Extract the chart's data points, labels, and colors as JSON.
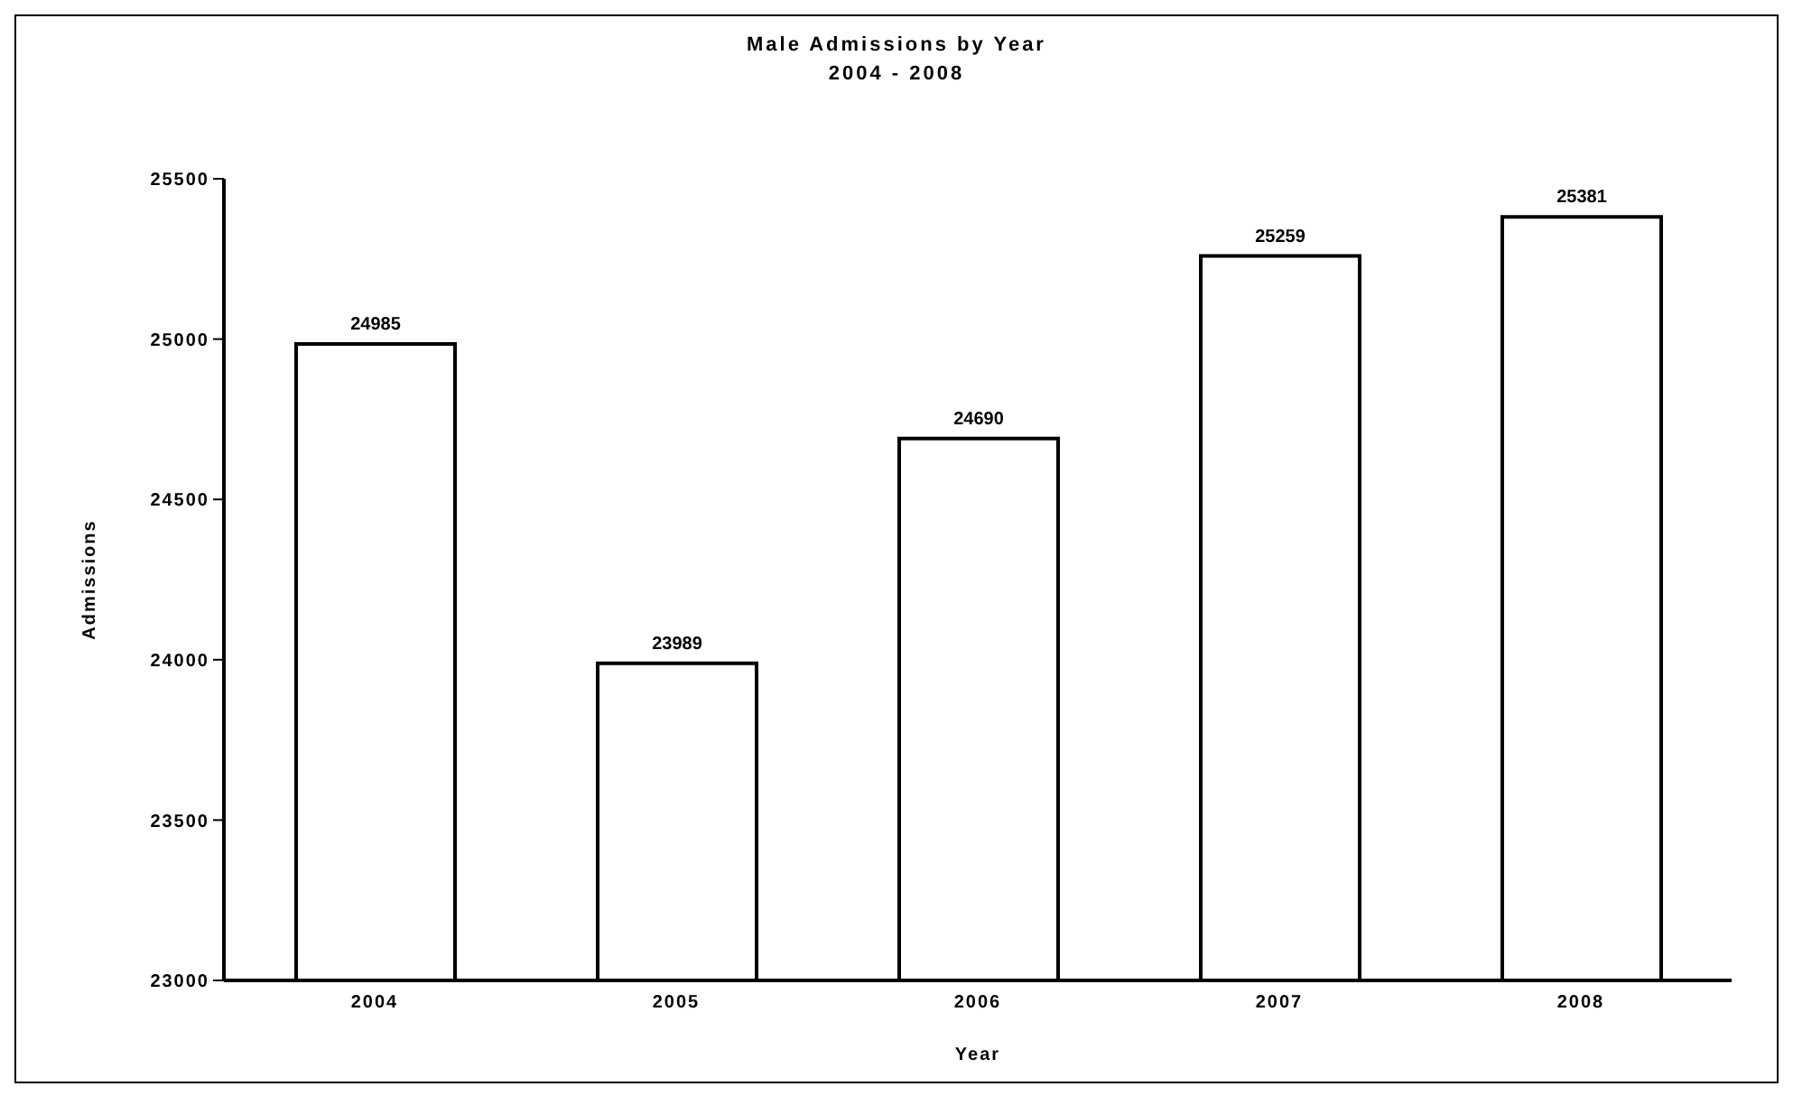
{
  "chart_data": {
    "type": "bar",
    "title": "Male Admissions by Year",
    "subtitle": "2004 - 2008",
    "xlabel": "Year",
    "ylabel": "Admissions",
    "categories": [
      "2004",
      "2005",
      "2006",
      "2007",
      "2008"
    ],
    "values": [
      24985,
      23989,
      24690,
      25259,
      25381
    ],
    "color": "#ffffff",
    "ylim": [
      23000,
      25500
    ],
    "yticks": [
      23000,
      23500,
      24000,
      24500,
      25000,
      25500
    ],
    "grid": false,
    "data_labels": true
  }
}
